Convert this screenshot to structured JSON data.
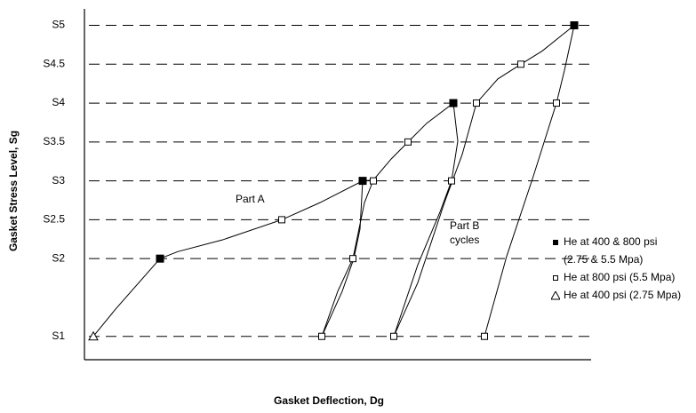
{
  "chart_data": {
    "type": "line",
    "y_title": "Gasket Stress Level, Sg",
    "x_title": "Gasket Deflection, Dg",
    "annotations": [
      "Part A",
      "Part B",
      "cycles"
    ],
    "xlim": [
      0,
      570
    ],
    "ylim": [
      0.7,
      5.2
    ],
    "yticks": [
      {
        "value": 1,
        "label": "S1"
      },
      {
        "value": 2,
        "label": "S2"
      },
      {
        "value": 2.5,
        "label": "S2.5"
      },
      {
        "value": 3,
        "label": "S3"
      },
      {
        "value": 3.5,
        "label": "S3.5"
      },
      {
        "value": 4,
        "label": "S4"
      },
      {
        "value": 4.5,
        "label": "S4.5"
      },
      {
        "value": 5,
        "label": "S5"
      }
    ],
    "grid": true,
    "legend": "right",
    "series": [
      {
        "color": "#000000",
        "x": [
          10,
          35,
          85,
          105,
          155,
          222,
          265,
          313,
          325,
          345,
          364,
          385,
          415
        ],
        "values": [
          1,
          1.35,
          2,
          2.09,
          2.24,
          2.5,
          2.72,
          3,
          3.01,
          3.28,
          3.5,
          3.74,
          4
        ]
      },
      {
        "color": "#000000",
        "x": [
          313,
          310,
          303,
          290,
          267,
          285,
          302,
          315,
          325
        ],
        "values": [
          3,
          2.38,
          2,
          1.58,
          1,
          1.58,
          2,
          2.72,
          3.01
        ]
      },
      {
        "color": "#000000",
        "x": [
          415,
          420,
          413,
          400,
          375,
          348,
          375,
          405,
          425,
          441,
          465,
          491,
          515,
          551,
          540,
          531,
          505,
          475,
          450
        ],
        "values": [
          4,
          3.51,
          3,
          2.6,
          1.92,
          1,
          1.69,
          2.72,
          3.34,
          4,
          4.31,
          4.5,
          4.67,
          5,
          4.42,
          4,
          3.06,
          2.03,
          1
        ]
      },
      {
        "name": "He at 400 & 800 psi (2.75 & 5.5 Mpa)",
        "marker": "filled-square",
        "color": "#000000",
        "x": [
          85,
          313,
          415,
          551
        ],
        "values": [
          2,
          3,
          4,
          5
        ]
      },
      {
        "name": "He at 800 psi (5.5 Mpa)",
        "marker": "open-square",
        "color": "#000000",
        "x": [
          222,
          325,
          364,
          302,
          267,
          413,
          348,
          441,
          491,
          531,
          450
        ],
        "values": [
          2.5,
          3,
          3.5,
          2,
          1,
          3,
          1,
          4,
          4.5,
          4,
          1
        ]
      },
      {
        "name": "He at 400 psi (2.75 Mpa)",
        "marker": "open-triangle",
        "color": "#000000",
        "x": [
          10
        ],
        "values": [
          1
        ]
      }
    ]
  }
}
